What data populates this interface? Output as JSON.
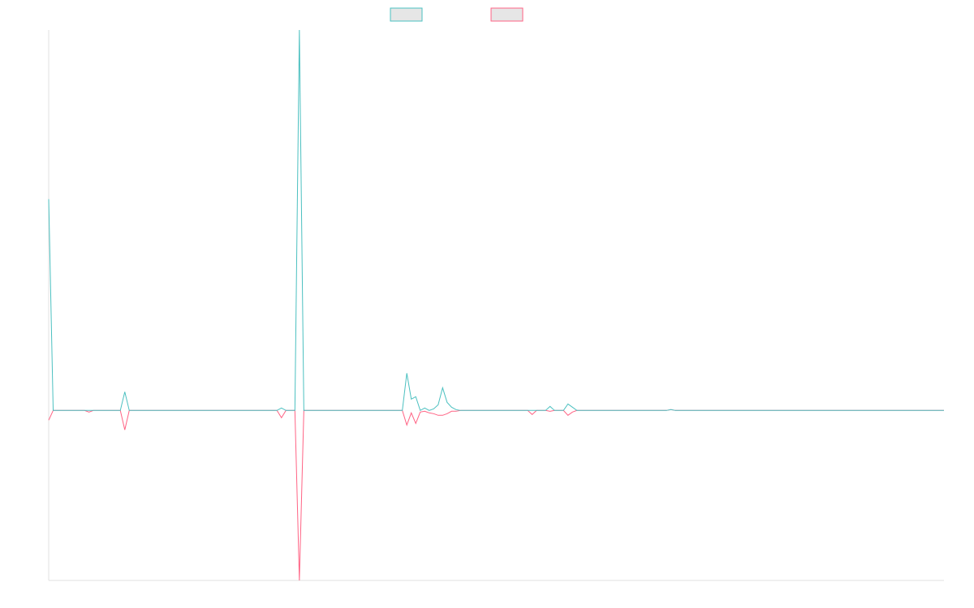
{
  "chart_data": {
    "type": "line",
    "x": [
      0,
      1,
      8,
      9,
      10,
      16,
      17,
      18,
      51,
      52,
      53,
      55,
      56,
      57,
      79,
      80,
      81,
      82,
      83,
      84,
      85,
      86,
      87,
      88,
      89,
      90,
      91,
      92,
      107,
      108,
      109,
      111,
      112,
      113,
      115,
      116,
      117,
      118,
      138,
      139,
      140,
      200
    ],
    "xlim": [
      0,
      200
    ],
    "ylim": [
      -210,
      470
    ],
    "series": [
      {
        "color": "#4bc0c0",
        "values": [
          261,
          0,
          0,
          0,
          0,
          0,
          23,
          0,
          0,
          3,
          0,
          0,
          470,
          0,
          0,
          46,
          14,
          17,
          0,
          3,
          0,
          2,
          7,
          28,
          10,
          4,
          1,
          0,
          0,
          0,
          0,
          0,
          5,
          0,
          0,
          8,
          4,
          0,
          0,
          1,
          0,
          0
        ]
      },
      {
        "color": "#ff6384",
        "values": [
          -12,
          0,
          0,
          -2,
          0,
          0,
          -24,
          0,
          0,
          -9,
          0,
          0,
          -210,
          0,
          0,
          -18,
          -3,
          -16,
          -2,
          -1,
          -3,
          -4,
          -6,
          -6,
          -4,
          -1,
          -1,
          0,
          0,
          -5,
          0,
          0,
          -1,
          0,
          0,
          -6,
          -2,
          0,
          0,
          1,
          0,
          0
        ]
      }
    ]
  }
}
